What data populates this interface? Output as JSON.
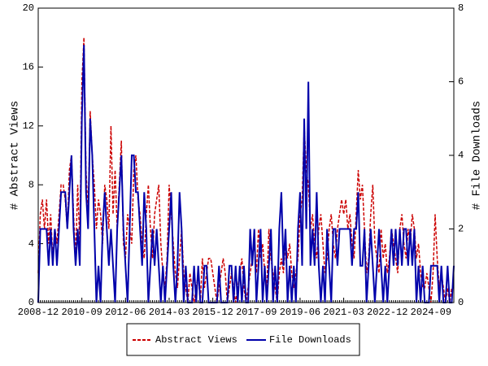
{
  "chart_data": {
    "type": "line",
    "x": [
      "2008-12",
      "2009-01",
      "2009-02",
      "2009-03",
      "2009-04",
      "2009-05",
      "2009-06",
      "2009-07",
      "2009-08",
      "2009-09",
      "2009-10",
      "2009-11",
      "2009-12",
      "2010-01",
      "2010-02",
      "2010-03",
      "2010-04",
      "2010-05",
      "2010-06",
      "2010-07",
      "2010-08",
      "2010-09",
      "2010-10",
      "2010-11",
      "2010-12",
      "2011-01",
      "2011-02",
      "2011-03",
      "2011-04",
      "2011-05",
      "2011-06",
      "2011-07",
      "2011-08",
      "2011-09",
      "2011-10",
      "2011-11",
      "2011-12",
      "2012-01",
      "2012-02",
      "2012-03",
      "2012-04",
      "2012-05",
      "2012-06",
      "2012-07",
      "2012-08",
      "2012-09",
      "2012-10",
      "2012-11",
      "2012-12",
      "2013-01",
      "2013-02",
      "2013-03",
      "2013-04",
      "2013-05",
      "2013-06",
      "2013-07",
      "2013-08",
      "2013-09",
      "2013-10",
      "2013-11",
      "2013-12",
      "2014-01",
      "2014-02",
      "2014-03",
      "2014-04",
      "2014-05",
      "2014-06",
      "2014-07",
      "2014-08",
      "2014-09",
      "2014-10",
      "2014-11",
      "2014-12",
      "2015-01",
      "2015-02",
      "2015-03",
      "2015-04",
      "2015-05",
      "2015-06",
      "2015-07",
      "2015-08",
      "2015-09",
      "2015-10",
      "2015-11",
      "2015-12",
      "2016-01",
      "2016-02",
      "2016-03",
      "2016-04",
      "2016-05",
      "2016-06",
      "2016-07",
      "2016-08",
      "2016-09",
      "2016-10",
      "2016-11",
      "2016-12",
      "2017-01",
      "2017-02",
      "2017-03",
      "2017-04",
      "2017-05",
      "2017-06",
      "2017-07",
      "2017-08",
      "2017-09",
      "2017-10",
      "2017-11",
      "2017-12",
      "2018-01",
      "2018-02",
      "2018-03",
      "2018-04",
      "2018-05",
      "2018-06",
      "2018-07",
      "2018-08",
      "2018-09",
      "2018-10",
      "2018-11",
      "2018-12",
      "2019-01",
      "2019-02",
      "2019-03",
      "2019-04",
      "2019-05",
      "2019-06",
      "2019-07",
      "2019-08",
      "2019-09",
      "2019-10",
      "2019-11",
      "2019-12",
      "2020-01",
      "2020-02",
      "2020-03",
      "2020-04",
      "2020-05",
      "2020-06",
      "2020-07",
      "2020-08",
      "2020-09",
      "2020-10",
      "2020-11",
      "2020-12",
      "2021-01",
      "2021-02",
      "2021-03",
      "2021-04",
      "2021-05",
      "2021-06",
      "2021-07",
      "2021-08",
      "2021-09",
      "2021-10",
      "2021-11",
      "2021-12",
      "2022-01",
      "2022-02",
      "2022-03",
      "2022-04",
      "2022-05",
      "2022-06",
      "2022-07",
      "2022-08",
      "2022-09",
      "2022-10",
      "2022-11",
      "2022-12",
      "2023-01",
      "2023-02",
      "2023-03",
      "2023-04",
      "2023-05",
      "2023-06",
      "2023-07",
      "2023-08",
      "2023-09",
      "2023-10",
      "2023-11",
      "2023-12",
      "2024-01",
      "2024-02",
      "2024-03",
      "2024-04",
      "2024-05",
      "2024-06",
      "2024-07",
      "2024-08",
      "2024-09",
      "2024-10",
      "2024-11",
      "2024-12",
      "2025-01",
      "2025-02",
      "2025-03",
      "2025-04",
      "2025-05",
      "2025-06",
      "2025-07",
      "2025-08"
    ],
    "xticks": [
      "2008-12",
      "2010-09",
      "2012-06",
      "2014-03",
      "2015-12",
      "2017-09",
      "2019-06",
      "2021-03",
      "2022-12",
      "2024-09"
    ],
    "ylabel": "# Abstract Views",
    "y2label": "# File Downloads",
    "ylim": [
      0,
      20
    ],
    "yticks": [
      0,
      4,
      8,
      12,
      16,
      20
    ],
    "y2lim": [
      0,
      8
    ],
    "y2ticks": [
      0,
      2,
      4,
      6,
      8
    ],
    "series": [
      {
        "name": "Abstract Views",
        "color": "#cc0000",
        "dash": true,
        "values": [
          2,
          6,
          7,
          5,
          7,
          4,
          6,
          3,
          5,
          4,
          6,
          8,
          8,
          7,
          5,
          9,
          10,
          6,
          3,
          8,
          4,
          15,
          18,
          9,
          6,
          13,
          10,
          8,
          5,
          7,
          6,
          4,
          8,
          7,
          5,
          12,
          6,
          9,
          5,
          8,
          11,
          4,
          3,
          6,
          5,
          4,
          9,
          10,
          7,
          6,
          4,
          3,
          6,
          8,
          5,
          3,
          6,
          7,
          8,
          4,
          2,
          1,
          3,
          8,
          6,
          4,
          2,
          1,
          3,
          5,
          2,
          1,
          0,
          2,
          1,
          0,
          1,
          2,
          0,
          3,
          1,
          2,
          3,
          3,
          2,
          1,
          0,
          1,
          2,
          3,
          2,
          0,
          1,
          2,
          1,
          0,
          1,
          2,
          3,
          1,
          0,
          1,
          2,
          3,
          4,
          2,
          5,
          3,
          4,
          2,
          1,
          5,
          3,
          2,
          1,
          0,
          2,
          3,
          2,
          4,
          3,
          4,
          2,
          1,
          2,
          3,
          6,
          7,
          12,
          9,
          8,
          5,
          6,
          4,
          3,
          5,
          6,
          4,
          2,
          3,
          5,
          6,
          4,
          3,
          5,
          6,
          7,
          6,
          7,
          5,
          6,
          4,
          3,
          6,
          9,
          7,
          8,
          5,
          2,
          3,
          6,
          8,
          4,
          3,
          2,
          5,
          3,
          4,
          2,
          3,
          5,
          4,
          3,
          2,
          5,
          6,
          4,
          3,
          5,
          4,
          6,
          5,
          3,
          4,
          2,
          1,
          1,
          2,
          1,
          0,
          2,
          6,
          3,
          1,
          2,
          1,
          0,
          1,
          0,
          1,
          1
        ]
      },
      {
        "name": "File Downloads",
        "color": "#0000aa",
        "axis": "y2",
        "values": [
          0,
          2,
          2,
          2,
          2,
          1,
          2,
          1,
          2,
          1,
          2,
          3,
          3,
          3,
          2,
          3,
          4,
          2,
          1,
          2,
          1,
          5,
          7,
          3,
          2,
          5,
          4,
          2,
          0,
          1,
          0,
          2,
          3,
          2,
          1,
          2,
          1,
          0,
          2,
          3,
          4,
          2,
          1,
          0,
          2,
          4,
          4,
          3,
          3,
          2,
          1,
          3,
          2,
          0,
          1,
          2,
          1,
          2,
          1,
          0,
          1,
          0,
          1,
          2,
          3,
          1,
          0,
          1,
          3,
          2,
          0,
          1,
          0,
          0,
          0,
          1,
          0,
          1,
          0,
          0,
          1,
          1,
          0,
          0,
          0,
          0,
          0,
          1,
          0,
          0,
          0,
          0,
          1,
          1,
          0,
          1,
          0,
          1,
          0,
          1,
          0,
          0,
          2,
          1,
          2,
          0,
          1,
          2,
          0,
          1,
          0,
          1,
          2,
          0,
          1,
          0,
          2,
          3,
          1,
          2,
          0,
          1,
          0,
          1,
          0,
          2,
          3,
          1,
          5,
          2,
          6,
          1,
          2,
          1,
          3,
          1,
          0,
          1,
          0,
          2,
          1,
          0,
          2,
          2,
          1,
          2,
          2,
          2,
          2,
          2,
          2,
          1,
          2,
          2,
          3,
          1,
          1,
          2,
          0,
          1,
          2,
          1,
          0,
          1,
          2,
          1,
          0,
          1,
          0,
          1,
          2,
          1,
          2,
          1,
          2,
          1,
          2,
          2,
          1,
          2,
          1,
          2,
          0,
          1,
          0,
          1,
          0,
          0,
          0,
          1,
          1,
          1,
          1,
          0,
          1,
          0,
          0,
          1,
          0,
          0,
          1
        ]
      }
    ]
  }
}
